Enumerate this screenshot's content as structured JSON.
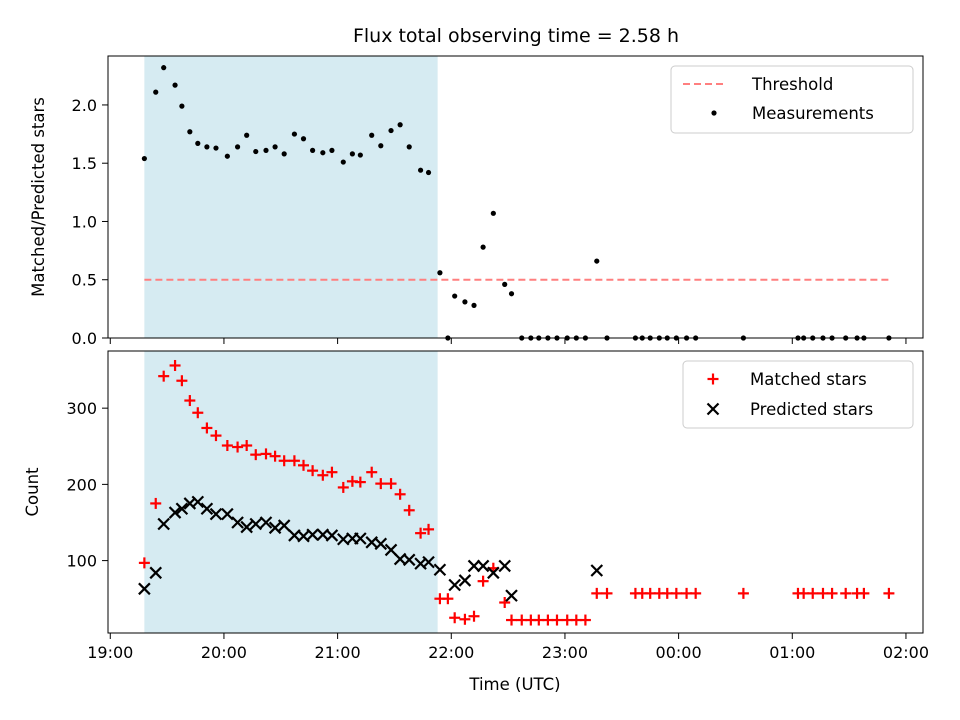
{
  "title": "Flux total observing time = 2.58 h",
  "x_tick_labels": [
    "19:00",
    "20:00",
    "21:00",
    "22:00",
    "23:00",
    "00:00",
    "01:00",
    "02:00"
  ],
  "colors": {
    "shade": "#add8e6",
    "threshold": "#ff7f7f",
    "measurements": "#000000",
    "matched": "#ff0000",
    "predicted": "#000000"
  },
  "chart_data": [
    {
      "type": "scatter",
      "panel": "top",
      "title": "Flux total observing time = 2.58 h",
      "xlabel": "",
      "ylabel": "Matched/Predicted stars",
      "xlim": [
        18.98,
        26.15
      ],
      "ylim": [
        0,
        2.42
      ],
      "x_ticks": [
        19,
        20,
        21,
        22,
        23,
        24,
        25,
        26
      ],
      "y_ticks": [
        0.0,
        0.5,
        1.0,
        1.5,
        2.0
      ],
      "y_tick_labels": [
        "0.0",
        "0.5",
        "1.0",
        "1.5",
        "2.0"
      ],
      "x_unit": "hours UTC (values past 24 are after midnight)",
      "legend": {
        "position": "top-right",
        "entries": [
          "Threshold",
          "Measurements"
        ]
      },
      "shaded_span": [
        19.3,
        21.88
      ],
      "threshold": {
        "name": "Threshold",
        "value": 0.5,
        "x_range": [
          19.3,
          25.85
        ],
        "style": "dashed"
      },
      "series": [
        {
          "name": "Measurements",
          "marker": "dot",
          "x": [
            19.3,
            19.4,
            19.47,
            19.57,
            19.63,
            19.7,
            19.77,
            19.85,
            19.93,
            20.03,
            20.12,
            20.2,
            20.28,
            20.37,
            20.45,
            20.53,
            20.62,
            20.7,
            20.78,
            20.87,
            20.95,
            21.05,
            21.13,
            21.2,
            21.3,
            21.38,
            21.47,
            21.55,
            21.63,
            21.73,
            21.8,
            21.9,
            21.97,
            22.03,
            22.12,
            22.2,
            22.28,
            22.37,
            22.47,
            22.53,
            22.62,
            22.7,
            22.77,
            22.85,
            22.93,
            23.02,
            23.1,
            23.18,
            23.28,
            23.37,
            23.62,
            23.68,
            23.75,
            23.83,
            23.9,
            23.98,
            24.07,
            24.15,
            24.57,
            25.05,
            25.1,
            25.18,
            25.27,
            25.35,
            25.47,
            25.57,
            25.63,
            25.85
          ],
          "values": [
            1.54,
            2.11,
            2.32,
            2.17,
            1.99,
            1.77,
            1.67,
            1.64,
            1.63,
            1.56,
            1.64,
            1.74,
            1.6,
            1.61,
            1.64,
            1.58,
            1.75,
            1.71,
            1.61,
            1.59,
            1.61,
            1.51,
            1.58,
            1.57,
            1.74,
            1.65,
            1.78,
            1.83,
            1.64,
            1.44,
            1.42,
            0.56,
            0.0,
            0.36,
            0.31,
            0.28,
            0.78,
            1.07,
            0.46,
            0.38,
            0.0,
            0.0,
            0.0,
            0.0,
            0.0,
            0.0,
            0.0,
            0.0,
            0.66,
            0.0,
            0.0,
            0.0,
            0.0,
            0.0,
            0.0,
            0.0,
            0.0,
            0.0,
            0.0,
            0.0,
            0.0,
            0.0,
            0.0,
            0.0,
            0.0,
            0.0,
            0.0,
            0.0
          ]
        }
      ]
    },
    {
      "type": "scatter",
      "panel": "bottom",
      "title": "",
      "xlabel": "Time (UTC)",
      "ylabel": "Count",
      "xlim": [
        18.98,
        26.15
      ],
      "ylim": [
        5,
        375
      ],
      "x_ticks": [
        19,
        20,
        21,
        22,
        23,
        24,
        25,
        26
      ],
      "y_ticks": [
        100,
        200,
        300
      ],
      "y_tick_labels": [
        "100",
        "200",
        "300"
      ],
      "x_unit": "hours UTC (values past 24 are after midnight)",
      "legend": {
        "position": "top-right",
        "entries": [
          "Matched stars",
          "Predicted stars"
        ]
      },
      "shaded_span": [
        19.3,
        21.88
      ],
      "series": [
        {
          "name": "Matched stars",
          "marker": "plus",
          "x": [
            19.3,
            19.4,
            19.47,
            19.57,
            19.63,
            19.7,
            19.77,
            19.85,
            19.93,
            20.03,
            20.12,
            20.2,
            20.28,
            20.37,
            20.45,
            20.53,
            20.62,
            20.7,
            20.78,
            20.87,
            20.95,
            21.05,
            21.13,
            21.2,
            21.3,
            21.38,
            21.47,
            21.55,
            21.63,
            21.73,
            21.8,
            21.9,
            21.97,
            22.03,
            22.12,
            22.2,
            22.28,
            22.37,
            22.47,
            22.53,
            22.62,
            22.7,
            22.77,
            22.85,
            22.93,
            23.02,
            23.1,
            23.18,
            23.28,
            23.37,
            23.62,
            23.68,
            23.75,
            23.83,
            23.9,
            23.98,
            24.07,
            24.15,
            24.57,
            25.05,
            25.1,
            25.18,
            25.27,
            25.35,
            25.47,
            25.57,
            25.63,
            25.85
          ],
          "values": [
            97,
            175,
            342,
            356,
            336,
            310,
            294,
            274,
            264,
            251,
            249,
            251,
            239,
            240,
            237,
            231,
            231,
            225,
            218,
            212,
            216,
            196,
            204,
            203,
            216,
            201,
            201,
            187,
            166,
            136,
            141,
            50,
            50,
            25,
            23,
            27,
            73,
            90,
            45,
            22,
            22,
            22,
            22,
            22,
            22,
            22,
            22,
            22,
            57,
            57,
            57,
            57,
            57,
            57,
            57,
            57,
            57,
            57,
            57,
            57,
            57,
            57,
            57,
            57,
            57,
            57,
            57,
            57
          ]
        },
        {
          "name": "Predicted stars",
          "marker": "x",
          "x": [
            19.3,
            19.4,
            19.47,
            19.57,
            19.63,
            19.7,
            19.77,
            19.85,
            19.93,
            20.03,
            20.12,
            20.2,
            20.28,
            20.37,
            20.45,
            20.53,
            20.62,
            20.7,
            20.78,
            20.87,
            20.95,
            21.05,
            21.13,
            21.2,
            21.3,
            21.38,
            21.47,
            21.55,
            21.63,
            21.73,
            21.8,
            21.9,
            22.03,
            22.12,
            22.2,
            22.28,
            22.37,
            22.47,
            22.53,
            23.28
          ],
          "values": [
            63,
            84,
            148,
            163,
            168,
            175,
            177,
            168,
            161,
            161,
            150,
            144,
            148,
            150,
            143,
            146,
            133,
            132,
            134,
            134,
            133,
            128,
            129,
            129,
            124,
            122,
            114,
            102,
            101,
            96,
            98,
            88,
            68,
            74,
            93,
            93,
            84,
            93,
            54,
            87
          ]
        }
      ]
    }
  ]
}
